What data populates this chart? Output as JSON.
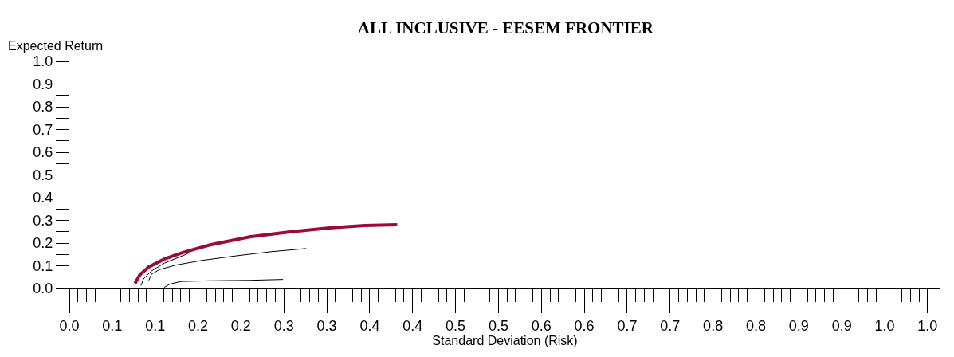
{
  "chart_data": {
    "type": "line",
    "title": "ALL INCLUSIVE - EESEM FRONTIER",
    "xlabel": "Standard Deviation (Risk)",
    "ylabel": "Expected Return",
    "series": [
      {
        "color": "#9b0a3a",
        "x": [
          0.0765,
          0.082,
          0.0926,
          0.111,
          0.133,
          0.164,
          0.21,
          0.257,
          0.303,
          0.344,
          0.382
        ],
        "values": [
          0.022,
          0.06,
          0.095,
          0.13,
          0.159,
          0.192,
          0.227,
          0.249,
          0.267,
          0.277,
          0.281
        ]
      },
      {
        "color": "#000000",
        "x": [
          0.0834,
          0.0864,
          0.0957,
          0.111,
          0.13,
          0.141
        ],
        "values": [
          0.013,
          0.042,
          0.077,
          0.112,
          0.141,
          0.159
        ]
      },
      {
        "color": "#000000",
        "x": [
          0.0926,
          0.0957,
          0.105,
          0.124,
          0.155,
          0.195,
          0.235,
          0.276
        ],
        "values": [
          0.036,
          0.063,
          0.083,
          0.103,
          0.124,
          0.144,
          0.162,
          0.176
        ]
      },
      {
        "color": "#000000",
        "x": [
          0.1106,
          0.117,
          0.13,
          0.164,
          0.21,
          0.249
        ],
        "values": [
          0.005,
          0.019,
          0.031,
          0.034,
          0.036,
          0.04
        ]
      }
    ],
    "xlim": [
      0,
      1.015
    ],
    "xticks": [
      {
        "value": 0,
        "label": "0.0"
      },
      {
        "value": 0.01,
        "label": null
      },
      {
        "value": 0.02,
        "label": null
      },
      {
        "value": 0.03,
        "label": null
      },
      {
        "value": 0.04,
        "label": null
      },
      {
        "value": 0.05,
        "label": "0.1"
      },
      {
        "value": 0.06,
        "label": null
      },
      {
        "value": 0.07,
        "label": null
      },
      {
        "value": 0.08,
        "label": null
      },
      {
        "value": 0.09,
        "label": null
      },
      {
        "value": 0.1,
        "label": "0.1"
      },
      {
        "value": 0.11,
        "label": null
      },
      {
        "value": 0.12,
        "label": null
      },
      {
        "value": 0.13,
        "label": null
      },
      {
        "value": 0.14,
        "label": null
      },
      {
        "value": 0.15,
        "label": "0.2"
      },
      {
        "value": 0.16,
        "label": null
      },
      {
        "value": 0.17,
        "label": null
      },
      {
        "value": 0.18,
        "label": null
      },
      {
        "value": 0.19,
        "label": null
      },
      {
        "value": 0.2,
        "label": "0.2"
      },
      {
        "value": 0.21,
        "label": null
      },
      {
        "value": 0.22,
        "label": null
      },
      {
        "value": 0.23,
        "label": null
      },
      {
        "value": 0.24,
        "label": null
      },
      {
        "value": 0.25,
        "label": "0.3"
      },
      {
        "value": 0.26,
        "label": null
      },
      {
        "value": 0.27,
        "label": null
      },
      {
        "value": 0.28,
        "label": null
      },
      {
        "value": 0.29,
        "label": null
      },
      {
        "value": 0.3,
        "label": "0.3"
      },
      {
        "value": 0.31,
        "label": null
      },
      {
        "value": 0.32,
        "label": null
      },
      {
        "value": 0.33,
        "label": null
      },
      {
        "value": 0.34,
        "label": null
      },
      {
        "value": 0.35,
        "label": "0.4"
      },
      {
        "value": 0.36,
        "label": null
      },
      {
        "value": 0.37,
        "label": null
      },
      {
        "value": 0.38,
        "label": null
      },
      {
        "value": 0.39,
        "label": null
      },
      {
        "value": 0.4,
        "label": "0.4"
      },
      {
        "value": 0.41,
        "label": null
      },
      {
        "value": 0.42,
        "label": null
      },
      {
        "value": 0.43,
        "label": null
      },
      {
        "value": 0.44,
        "label": null
      },
      {
        "value": 0.45,
        "label": "0.5"
      },
      {
        "value": 0.46,
        "label": null
      },
      {
        "value": 0.47,
        "label": null
      },
      {
        "value": 0.48,
        "label": null
      },
      {
        "value": 0.49,
        "label": null
      },
      {
        "value": 0.5,
        "label": "0.5"
      },
      {
        "value": 0.51,
        "label": null
      },
      {
        "value": 0.52,
        "label": null
      },
      {
        "value": 0.53,
        "label": null
      },
      {
        "value": 0.54,
        "label": null
      },
      {
        "value": 0.55,
        "label": "0.6"
      },
      {
        "value": 0.56,
        "label": null
      },
      {
        "value": 0.57,
        "label": null
      },
      {
        "value": 0.58,
        "label": null
      },
      {
        "value": 0.59,
        "label": null
      },
      {
        "value": 0.6,
        "label": "0.6"
      },
      {
        "value": 0.61,
        "label": null
      },
      {
        "value": 0.62,
        "label": null
      },
      {
        "value": 0.63,
        "label": null
      },
      {
        "value": 0.64,
        "label": null
      },
      {
        "value": 0.65,
        "label": "0.7"
      },
      {
        "value": 0.66,
        "label": null
      },
      {
        "value": 0.67,
        "label": null
      },
      {
        "value": 0.68,
        "label": null
      },
      {
        "value": 0.69,
        "label": null
      },
      {
        "value": 0.7,
        "label": "0.7"
      },
      {
        "value": 0.71,
        "label": null
      },
      {
        "value": 0.72,
        "label": null
      },
      {
        "value": 0.73,
        "label": null
      },
      {
        "value": 0.74,
        "label": null
      },
      {
        "value": 0.75,
        "label": "0.8"
      },
      {
        "value": 0.76,
        "label": null
      },
      {
        "value": 0.77,
        "label": null
      },
      {
        "value": 0.78,
        "label": null
      },
      {
        "value": 0.79,
        "label": null
      },
      {
        "value": 0.8,
        "label": "0.8"
      },
      {
        "value": 0.81,
        "label": null
      },
      {
        "value": 0.82,
        "label": null
      },
      {
        "value": 0.83,
        "label": null
      },
      {
        "value": 0.84,
        "label": null
      },
      {
        "value": 0.85,
        "label": "0.9"
      },
      {
        "value": 0.86,
        "label": null
      },
      {
        "value": 0.87,
        "label": null
      },
      {
        "value": 0.88,
        "label": null
      },
      {
        "value": 0.89,
        "label": null
      },
      {
        "value": 0.9,
        "label": "0.9"
      },
      {
        "value": 0.91,
        "label": null
      },
      {
        "value": 0.92,
        "label": null
      },
      {
        "value": 0.93,
        "label": null
      },
      {
        "value": 0.94,
        "label": null
      },
      {
        "value": 0.95,
        "label": "1.0"
      },
      {
        "value": 0.96,
        "label": null
      },
      {
        "value": 0.97,
        "label": null
      },
      {
        "value": 0.98,
        "label": null
      },
      {
        "value": 0.99,
        "label": null
      },
      {
        "value": 1,
        "label": "1.0"
      },
      {
        "value": 1.01,
        "label": null
      }
    ],
    "ylim": [
      0,
      1
    ],
    "yticks": [
      {
        "value": 0,
        "label": "0.0"
      },
      {
        "value": 0.05,
        "label": null
      },
      {
        "value": 0.1,
        "label": "0.1"
      },
      {
        "value": 0.15,
        "label": null
      },
      {
        "value": 0.2,
        "label": "0.2"
      },
      {
        "value": 0.25,
        "label": null
      },
      {
        "value": 0.3,
        "label": "0.3"
      },
      {
        "value": 0.35,
        "label": null
      },
      {
        "value": 0.4,
        "label": "0.4"
      },
      {
        "value": 0.45,
        "label": null
      },
      {
        "value": 0.5,
        "label": "0.5"
      },
      {
        "value": 0.55,
        "label": null
      },
      {
        "value": 0.6,
        "label": "0.6"
      },
      {
        "value": 0.65,
        "label": null
      },
      {
        "value": 0.7,
        "label": "0.7"
      },
      {
        "value": 0.75,
        "label": null
      },
      {
        "value": 0.8,
        "label": "0.8"
      },
      {
        "value": 0.85,
        "label": null
      },
      {
        "value": 0.9,
        "label": "0.9"
      },
      {
        "value": 0.95,
        "label": null
      },
      {
        "value": 1,
        "label": "1.0"
      }
    ],
    "grid": false,
    "legend": false,
    "marker": "none",
    "line_style": "solid"
  }
}
